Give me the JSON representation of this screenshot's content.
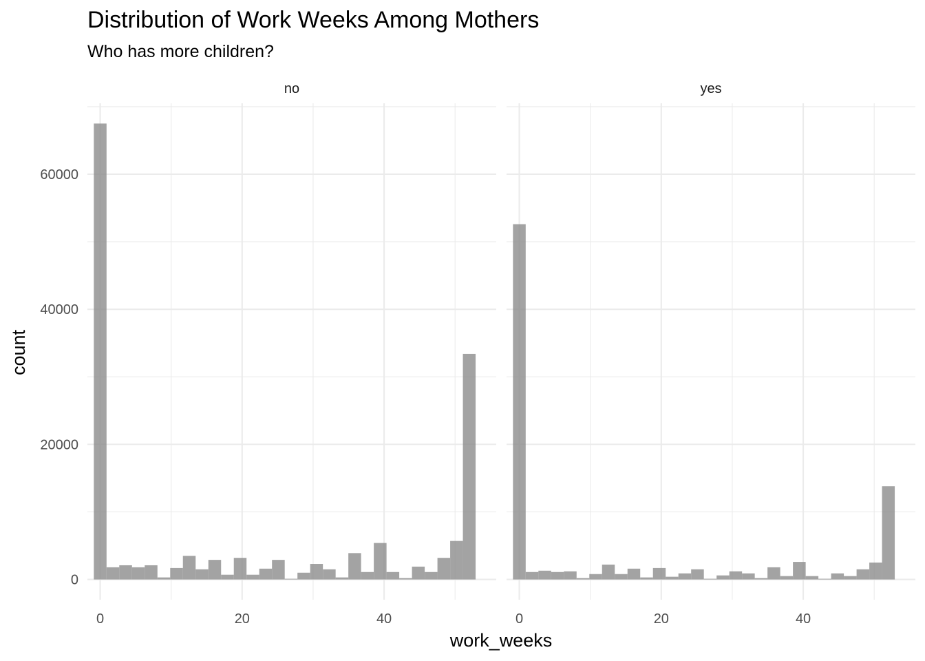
{
  "chart_data": {
    "type": "bar",
    "title": "Distribution of Work Weeks Among Mothers",
    "subtitle": "Who has more children?",
    "xlabel": "work_weeks",
    "ylabel": "count",
    "xlim": [
      -1.8,
      55.8
    ],
    "ylim": [
      -3000,
      70500
    ],
    "x_ticks": [
      0,
      20,
      40
    ],
    "y_ticks": [
      0,
      20000,
      40000,
      60000
    ],
    "bin_width": 1.793,
    "bin_centers": [
      0,
      1.793,
      3.586,
      5.379,
      7.172,
      8.966,
      10.759,
      12.552,
      14.345,
      16.138,
      17.931,
      19.724,
      21.517,
      23.31,
      25.103,
      26.897,
      28.69,
      30.483,
      32.276,
      34.069,
      35.862,
      37.655,
      39.448,
      41.241,
      43.034,
      44.828,
      46.621,
      48.414,
      50.207,
      52
    ],
    "facets": [
      {
        "label": "no",
        "values": [
          67500,
          1800,
          2100,
          1800,
          2100,
          300,
          1700,
          3500,
          1500,
          2900,
          700,
          3200,
          700,
          1600,
          2900,
          100,
          1000,
          2300,
          1500,
          300,
          3900,
          1100,
          5400,
          1100,
          200,
          1900,
          1100,
          3200,
          5700,
          33400
        ]
      },
      {
        "label": "yes",
        "values": [
          52600,
          1100,
          1300,
          1100,
          1200,
          200,
          800,
          2200,
          800,
          1600,
          300,
          1700,
          400,
          900,
          1500,
          100,
          600,
          1200,
          900,
          200,
          1800,
          500,
          2600,
          500,
          100,
          900,
          500,
          1500,
          2500,
          13800
        ]
      }
    ],
    "grid": true,
    "legend": "none",
    "bar_color": "#8c8c8c"
  }
}
